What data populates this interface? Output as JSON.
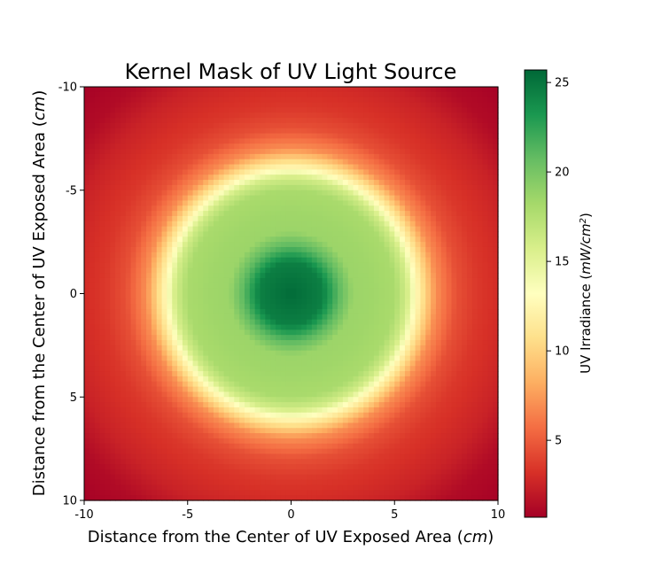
{
  "chart_data": {
    "type": "heatmap",
    "title": "Kernel Mask of UV Light Source",
    "xlabel": "Distance from the Center of UV Exposed Area (cm)",
    "xlabel_parts": [
      "Distance from the Center of UV Exposed Area (",
      "cm",
      ")"
    ],
    "ylabel": "Distance from the Center of UV Exposed Area (cm)",
    "ylabel_parts": [
      "Distance from the Center of UV Exposed Area (",
      "cm",
      ")"
    ],
    "xlim": [
      -10,
      10
    ],
    "ylim": [
      10,
      -10
    ],
    "x_ticks": [
      -10,
      -5,
      0,
      5,
      10
    ],
    "x_tick_labels": [
      "-10",
      "-5",
      "0",
      "5",
      "10"
    ],
    "y_ticks": [
      -10,
      -5,
      0,
      5,
      10
    ],
    "y_tick_labels": [
      "-10",
      "-5",
      "0",
      "5",
      "10"
    ],
    "grid": false,
    "grid_cells": 80,
    "colormap": "RdYlGn",
    "colormap_stops": [
      "#a50026",
      "#d73027",
      "#f46d43",
      "#fdae61",
      "#fee08b",
      "#ffffbf",
      "#d9ef8b",
      "#a6d96a",
      "#66bd63",
      "#1a9850",
      "#006837"
    ],
    "colorbar": {
      "label": "UV Irradiance (mW/cm2)",
      "label_parts": [
        "UV Irradiance (",
        "mW/cm",
        "2",
        ")"
      ],
      "vmin": 0.7,
      "vmax": 25.7,
      "ticks": [
        5,
        10,
        15,
        20,
        25
      ],
      "tick_labels": [
        "5",
        "10",
        "15",
        "20",
        "25"
      ]
    },
    "radial_profile": {
      "radius_cm": [
        0,
        1.5,
        2.3,
        3.0,
        4.0,
        5.0,
        5.6,
        6.0,
        6.5,
        7.0,
        8.0,
        9.0,
        10.0,
        11.0,
        12.5,
        14.2
      ],
      "irradiance": [
        25.5,
        24.5,
        21.0,
        18.6,
        18.4,
        18.0,
        16.0,
        13.0,
        10.0,
        7.0,
        4.5,
        3.5,
        3.0,
        2.5,
        1.3,
        0.8
      ]
    }
  }
}
